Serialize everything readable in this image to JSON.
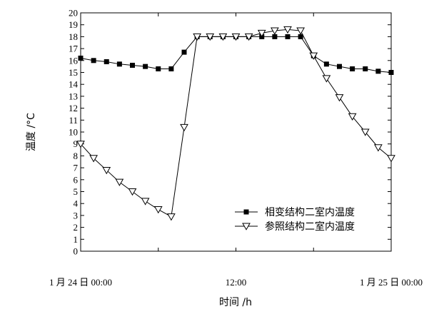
{
  "chart_data": {
    "type": "line",
    "title": "",
    "xlabel": "时间 /h",
    "ylabel": "温度 /°C",
    "ylim": [
      0,
      20
    ],
    "xlim": [
      0,
      24
    ],
    "yticks": [
      0,
      1,
      2,
      3,
      4,
      5,
      6,
      7,
      8,
      9,
      10,
      11,
      12,
      13,
      14,
      15,
      16,
      17,
      18,
      19,
      20
    ],
    "xtick_labels": [
      {
        "x": 0,
        "label": "1 月 24 日 00:00"
      },
      {
        "x": 12,
        "label": "12:00"
      },
      {
        "x": 24,
        "label": "1 月 25 日 00:00"
      }
    ],
    "grid": false,
    "legend_position": "bottom-right",
    "series": [
      {
        "name": "相变结构二室内温度",
        "marker": "filled-square",
        "x": [
          0,
          1,
          2,
          3,
          4,
          5,
          6,
          7,
          8,
          9,
          10,
          11,
          12,
          13,
          14,
          15,
          16,
          17,
          18,
          19,
          20,
          21,
          22,
          23,
          24
        ],
        "y": [
          16.2,
          16.0,
          15.9,
          15.7,
          15.6,
          15.5,
          15.3,
          15.3,
          16.7,
          18.0,
          18.0,
          18.0,
          18.0,
          18.0,
          18.0,
          18.0,
          18.0,
          18.0,
          16.4,
          15.7,
          15.5,
          15.3,
          15.3,
          15.1,
          15.0
        ]
      },
      {
        "name": "参照结构二室内温度",
        "marker": "open-triangle-down",
        "x": [
          0,
          1,
          2,
          3,
          4,
          5,
          6,
          7,
          8,
          9,
          10,
          11,
          12,
          13,
          14,
          15,
          16,
          17,
          18,
          19,
          20,
          21,
          22,
          23,
          24
        ],
        "y": [
          9.0,
          7.8,
          6.8,
          5.8,
          5.0,
          4.2,
          3.5,
          2.9,
          10.4,
          18.0,
          18.0,
          18.0,
          18.0,
          18.0,
          18.3,
          18.5,
          18.6,
          18.5,
          16.4,
          14.5,
          12.9,
          11.3,
          10.0,
          8.7,
          7.8
        ]
      }
    ]
  }
}
